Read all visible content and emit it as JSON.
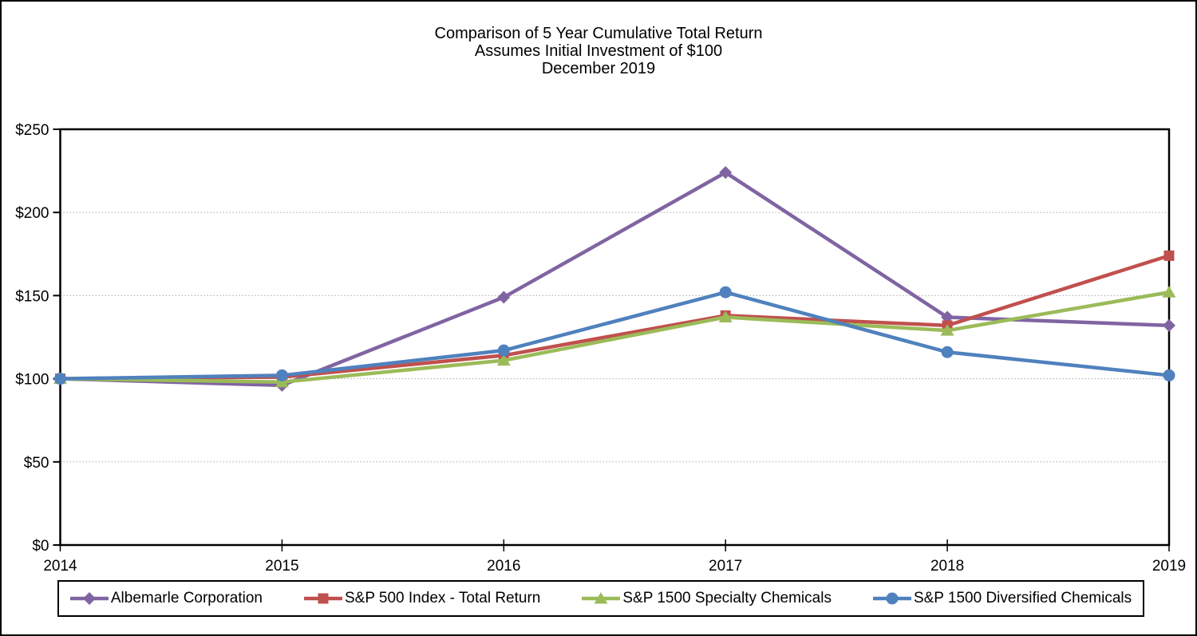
{
  "figure": {
    "title_lines": [
      "Comparison of 5 Year Cumulative Total Return",
      "Assumes Initial Investment of $100",
      "December 2019"
    ]
  },
  "chart_data": {
    "type": "line",
    "categories": [
      "2014",
      "2015",
      "2016",
      "2017",
      "2018",
      "2019"
    ],
    "series": [
      {
        "name": "Albemarle Corporation",
        "color": "#8064A2",
        "marker": "diamond",
        "values": [
          100,
          96,
          149,
          224,
          137,
          132
        ]
      },
      {
        "name": "S&P 500 Index - Total Return",
        "color": "#C0504D",
        "marker": "square",
        "values": [
          100,
          101,
          114,
          138,
          132,
          174
        ]
      },
      {
        "name": "S&P 1500 Specialty Chemicals",
        "color": "#9BBB59",
        "marker": "triangle",
        "values": [
          100,
          98,
          111,
          137,
          129,
          152
        ]
      },
      {
        "name": "S&P 1500 Diversified Chemicals",
        "color": "#4F81BD",
        "marker": "circle",
        "values": [
          100,
          102,
          117,
          152,
          116,
          102
        ]
      }
    ],
    "xlabel": "",
    "ylabel": "",
    "ylim": [
      0,
      250
    ],
    "ytick_step": 50,
    "ytick_labels": [
      "$0",
      "$50",
      "$100",
      "$150",
      "$200",
      "$250"
    ],
    "grid": "horizontal-dotted",
    "gridline_color": "#ACACAC",
    "axis_color": "#000000",
    "legend_position": "bottom"
  }
}
